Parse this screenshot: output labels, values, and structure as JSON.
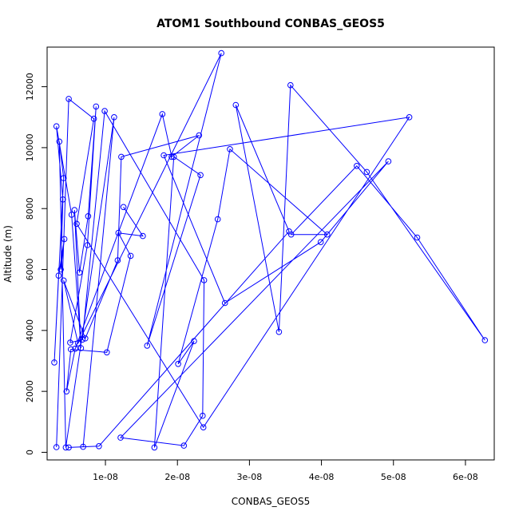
{
  "chart_data": {
    "type": "line",
    "title": "ATOM1 Southbound CONBAS_GEOS5",
    "xlabel": "CONBAS_GEOS5",
    "ylabel": "Altitude (m)",
    "xlim": [
      1.9e-09,
      6.4e-08
    ],
    "ylim": [
      -250,
      13300
    ],
    "x_ticks": [
      1e-08,
      2e-08,
      3e-08,
      4e-08,
      5e-08,
      6e-08
    ],
    "x_tick_labels": [
      "1e-08",
      "2e-08",
      "3e-08",
      "4e-08",
      "5e-08",
      "6e-08"
    ],
    "y_ticks": [
      0,
      2000,
      4000,
      6000,
      8000,
      10000,
      12000
    ],
    "y_tick_labels": [
      "0",
      "2000",
      "4000",
      "6000",
      "8000",
      "10000",
      "12000"
    ],
    "grid": false,
    "color": "#0000ff",
    "series": [
      {
        "x": [
          1.25e-08,
          1.52e-08,
          1.18e-08,
          1.35e-08,
          1.02e-08,
          5.2e-09,
          4.6e-09,
          5.8e-09,
          1.79e-08,
          1.92e-08,
          2.3e-08,
          1.22e-08,
          1.17e-08,
          7.2e-09,
          4.2e-09,
          6.2e-09,
          2.61e-08,
          1.58e-08,
          2.32e-08,
          1.95e-08,
          1.68e-08,
          2.23e-08,
          2.01e-08,
          2.56e-08,
          2.73e-08,
          4.08e-08,
          3.58e-08,
          4.49e-08,
          5.33e-08,
          6.27e-08,
          4.63e-08,
          3.57e-08,
          3.41e-08,
          2.81e-08,
          3.55e-08,
          9.1e-09,
          4.9e-09,
          6.9e-09,
          1.12e-08,
          4.5e-09,
          3.6e-09,
          4.2e-09,
          2.9e-09,
          3.5e-09,
          4.3e-09,
          3.8e-09,
          4.1e-09,
          3.2e-09,
          5.3e-09,
          6.6e-09,
          5.7e-09,
          6.4e-09,
          7.6e-09,
          8.7e-09,
          7.5e-09,
          5.1e-09,
          6.8e-09,
          9.9e-09,
          2.37e-08,
          2.35e-08,
          2.09e-08,
          1.21e-08,
          4.93e-08,
          3.99e-08,
          2.66e-08,
          1.81e-08,
          5.22e-08,
          2.36e-08,
          6e-09,
          8.4e-09,
          4.9e-09,
          3.2e-09
        ],
        "y": [
          8050,
          7100,
          7200,
          6450,
          3280,
          3380,
          2000,
          3400,
          11100,
          9700,
          10400,
          9700,
          6300,
          3740,
          5640,
          3580,
          13100,
          3500,
          9100,
          9700,
          160,
          3650,
          2900,
          7650,
          9950,
          7150,
          7150,
          9400,
          7050,
          3680,
          9200,
          12050,
          3950,
          11400,
          7250,
          200,
          160,
          180,
          11000,
          160,
          10200,
          9000,
          2950,
          5800,
          7000,
          6000,
          8300,
          10700,
          7800,
          3420,
          7950,
          5900,
          7750,
          11350,
          6800,
          3600,
          3700,
          11200,
          5650,
          1200,
          220,
          480,
          9550,
          6900,
          4900,
          9750,
          11000,
          820,
          7500,
          10950,
          11600,
          170
        ]
      }
    ]
  }
}
